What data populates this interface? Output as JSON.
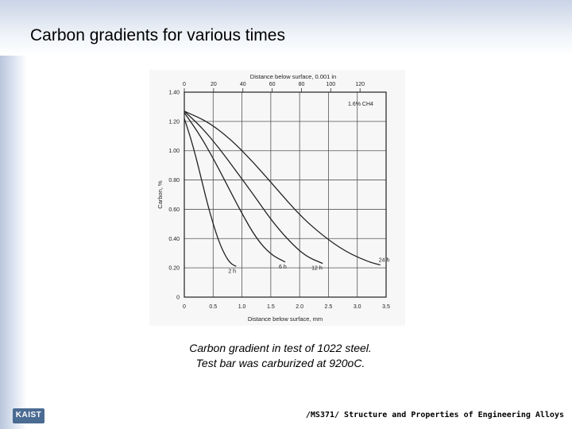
{
  "slide": {
    "title": "Carbon gradients for various times",
    "caption_line1": "Carbon gradient in test of 1022 steel.",
    "caption_line2": "Test bar was carburized at 920oC.",
    "footer": "/MS371/ Structure and Properties of Engineering Alloys",
    "logo": "KAIST"
  },
  "chart_data": {
    "type": "line",
    "title": "",
    "xlabel": "Distance below surface, mm",
    "ylabel": "Carbon, %",
    "x2label": "Distance below surface, 0.001 in",
    "xlim": [
      0,
      3.5
    ],
    "ylim": [
      0,
      1.4
    ],
    "x_ticks": [
      "0",
      "0.5",
      "1.0",
      "1.5",
      "2.0",
      "2.5",
      "3.0",
      "3.5"
    ],
    "y_ticks": [
      "0",
      "0.20",
      "0.40",
      "0.60",
      "0.80",
      "1.00",
      "1.20",
      "1.40"
    ],
    "x2_ticks": [
      "0",
      "20",
      "40",
      "60",
      "80",
      "100",
      "120"
    ],
    "annotation": "1.6% CH4",
    "grid": true,
    "series": [
      {
        "name": "2 h",
        "x": [
          0,
          0.1,
          0.2,
          0.3,
          0.4,
          0.5,
          0.6,
          0.7,
          0.8,
          0.9
        ],
        "y": [
          1.22,
          1.1,
          0.96,
          0.8,
          0.64,
          0.5,
          0.38,
          0.29,
          0.23,
          0.21
        ]
      },
      {
        "name": "6 h",
        "x": [
          0,
          0.25,
          0.5,
          0.75,
          1.0,
          1.25,
          1.5,
          1.75
        ],
        "y": [
          1.26,
          1.12,
          0.95,
          0.76,
          0.57,
          0.4,
          0.29,
          0.24
        ]
      },
      {
        "name": "12 h",
        "x": [
          0,
          0.3,
          0.6,
          0.9,
          1.2,
          1.5,
          1.8,
          2.1,
          2.4
        ],
        "y": [
          1.27,
          1.16,
          1.02,
          0.86,
          0.7,
          0.53,
          0.39,
          0.28,
          0.23
        ]
      },
      {
        "name": "24 h",
        "x": [
          0,
          0.4,
          0.8,
          1.2,
          1.6,
          2.0,
          2.4,
          2.8,
          3.2,
          3.4
        ],
        "y": [
          1.27,
          1.2,
          1.08,
          0.92,
          0.74,
          0.56,
          0.42,
          0.31,
          0.24,
          0.22
        ]
      }
    ]
  }
}
